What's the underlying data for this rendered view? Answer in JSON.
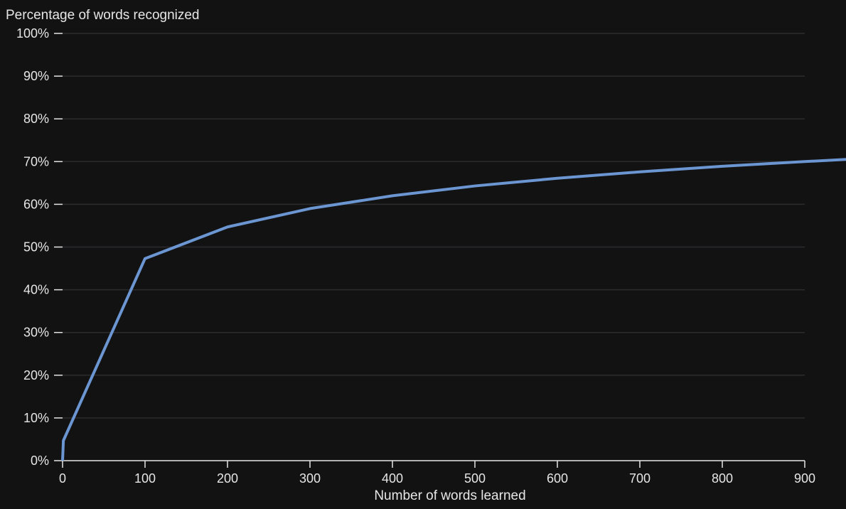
{
  "colors": {
    "background": "#121213",
    "grid": "#2c2c2e",
    "axis": "#e6e6e6",
    "text": "#e6e6e6",
    "series": "#6b96d2"
  },
  "chart_data": {
    "type": "line",
    "title": "",
    "ylabel": "Percentage of words recognized",
    "xlabel": "Number of words learned",
    "xlim": [
      0,
      900
    ],
    "ylim": [
      0,
      100
    ],
    "grid": true,
    "x_ticks": [
      {
        "value": 0,
        "label": "0"
      },
      {
        "value": 100,
        "label": "100"
      },
      {
        "value": 200,
        "label": "200"
      },
      {
        "value": 300,
        "label": "300"
      },
      {
        "value": 400,
        "label": "400"
      },
      {
        "value": 500,
        "label": "500"
      },
      {
        "value": 600,
        "label": "600"
      },
      {
        "value": 700,
        "label": "700"
      },
      {
        "value": 800,
        "label": "800"
      },
      {
        "value": 900,
        "label": "900"
      }
    ],
    "y_ticks": [
      {
        "value": 0,
        "label": "0%"
      },
      {
        "value": 10,
        "label": "10%"
      },
      {
        "value": 20,
        "label": "20%"
      },
      {
        "value": 30,
        "label": "30%"
      },
      {
        "value": 40,
        "label": "40%"
      },
      {
        "value": 50,
        "label": "50%"
      },
      {
        "value": 60,
        "label": "60%"
      },
      {
        "value": 70,
        "label": "70%"
      },
      {
        "value": 80,
        "label": "80%"
      },
      {
        "value": 90,
        "label": "90%"
      },
      {
        "value": 100,
        "label": "100%"
      }
    ],
    "series": [
      {
        "x": [
          0,
          1,
          100,
          200,
          300,
          400,
          500,
          600,
          700,
          800,
          900,
          950
        ],
        "y": [
          0,
          4.7,
          47.3,
          54.7,
          59.0,
          62.0,
          64.3,
          66.1,
          67.6,
          68.9,
          70.0,
          70.5
        ]
      }
    ]
  }
}
